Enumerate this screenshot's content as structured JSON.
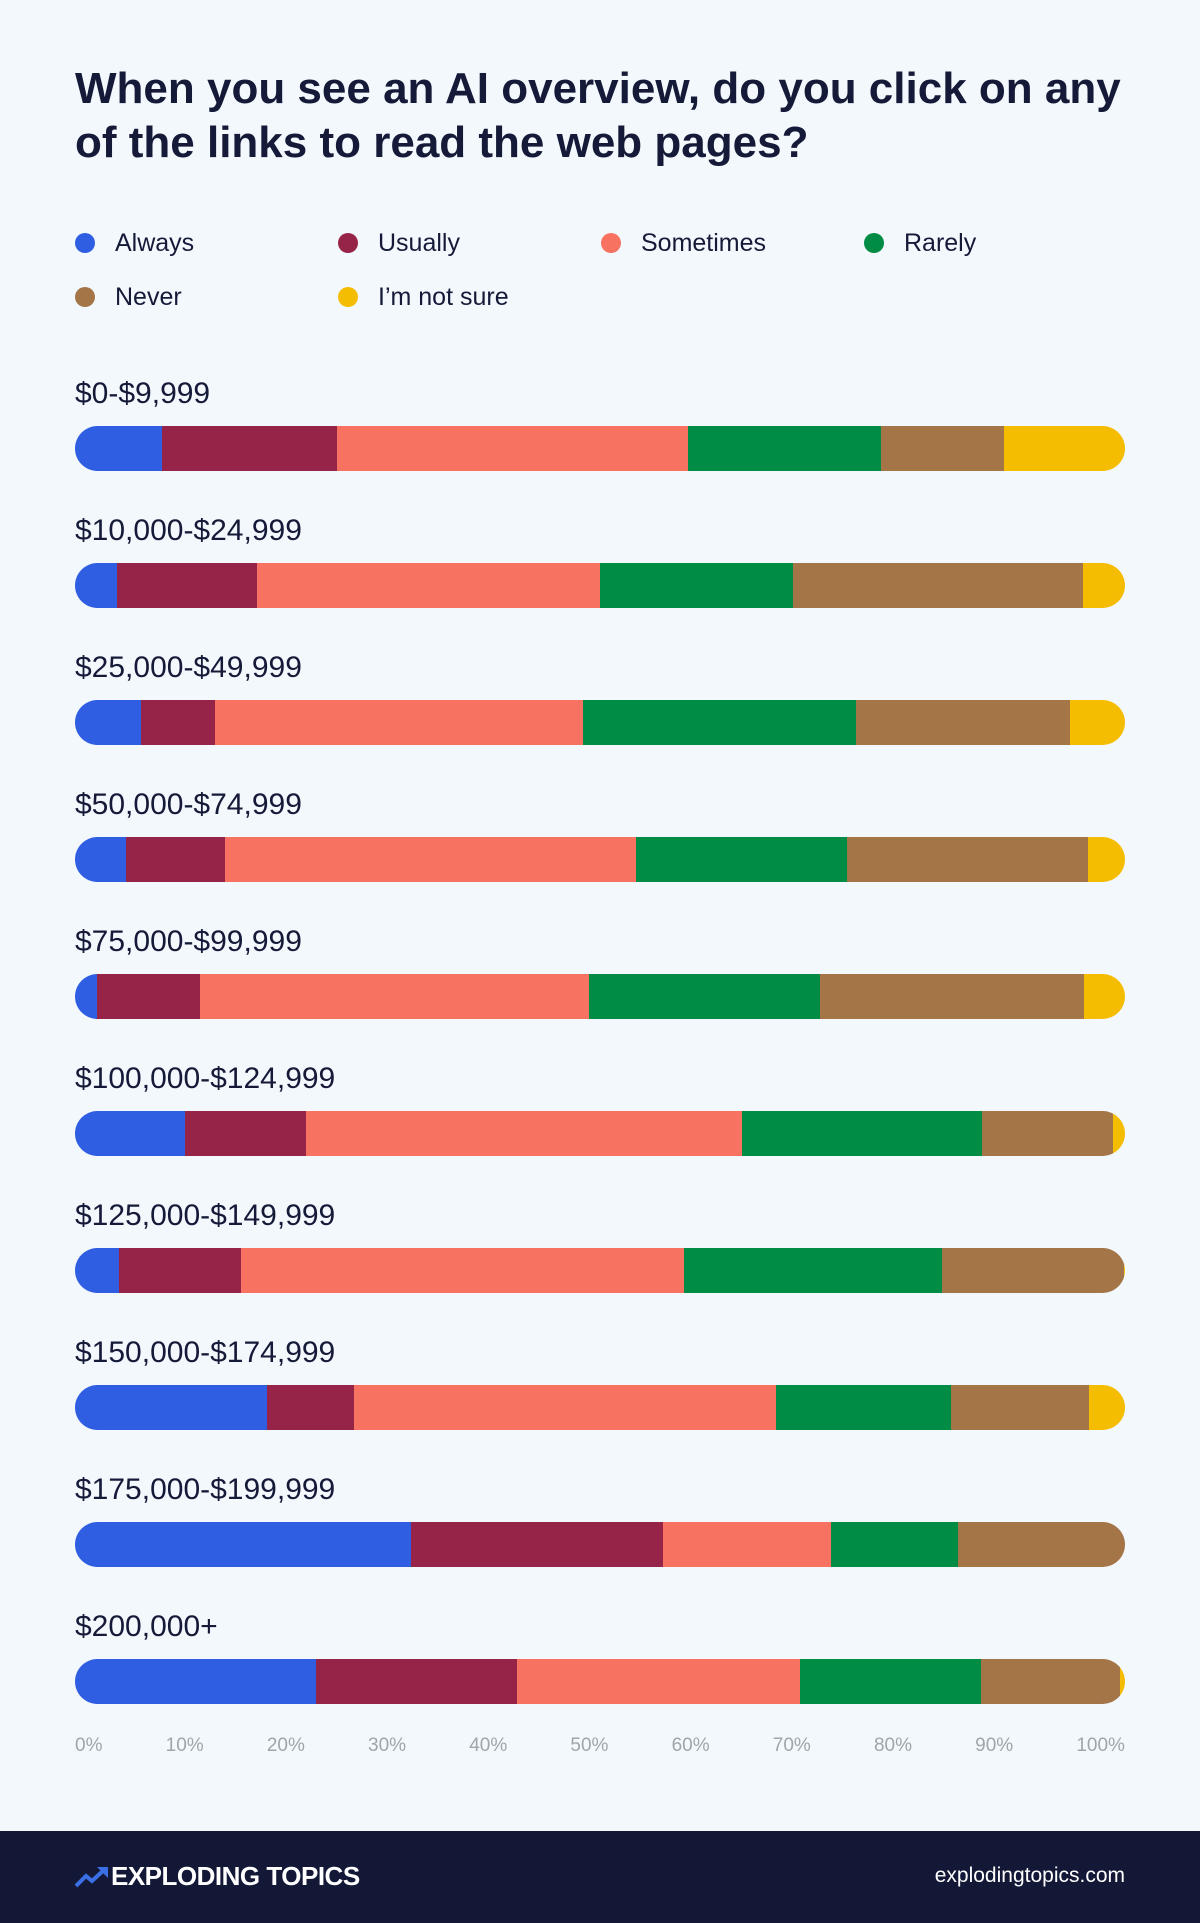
{
  "chart_data": {
    "type": "bar",
    "orientation": "horizontal",
    "stacked": true,
    "title": "When you see an AI overview, do you click on any of the links to read the web pages?",
    "legend_position": "top",
    "series_colors": [
      "#2f5ee3",
      "#962448",
      "#f87262",
      "#008c44",
      "#a37547",
      "#f5bd02"
    ],
    "legend": [
      "Always",
      "Usually",
      "Sometimes",
      "Rarely",
      "Never",
      "I’m not sure"
    ],
    "categories": [
      "$0-$9,999",
      "$10,000-$24,999",
      "$25,000-$49,999",
      "$50,000-$74,999",
      "$75,000-$99,999",
      "$100,000-$124,999",
      "$125,000-$149,999",
      "$150,000-$174,999",
      "$175,000-$199,999",
      "$200,000+"
    ],
    "series": [
      {
        "name": "Always",
        "values": [
          8.3,
          4.0,
          6.3,
          4.9,
          2.1,
          10.5,
          4.2,
          18.3,
          32.0,
          23.0
        ]
      },
      {
        "name": "Usually",
        "values": [
          16.7,
          13.3,
          7.0,
          9.4,
          9.8,
          11.5,
          11.6,
          8.3,
          24.0,
          19.1
        ]
      },
      {
        "name": "Sometimes",
        "values": [
          33.4,
          32.7,
          35.1,
          39.1,
          37.1,
          41.5,
          42.2,
          40.2,
          16.0,
          27.0
        ]
      },
      {
        "name": "Rarely",
        "values": [
          18.4,
          18.4,
          26.0,
          20.1,
          22.0,
          22.9,
          24.6,
          16.6,
          12.1,
          17.3
        ]
      },
      {
        "name": "Never",
        "values": [
          11.7,
          27.6,
          20.4,
          23.0,
          25.1,
          12.5,
          17.3,
          13.2,
          15.9,
          13.2
        ]
      },
      {
        "name": "I’m not sure",
        "values": [
          11.5,
          4.0,
          5.2,
          3.5,
          3.9,
          1.1,
          0.1,
          3.4,
          0.0,
          0.5
        ]
      }
    ],
    "xlim": [
      0,
      100
    ],
    "x_ticks": [
      "0%",
      "10%",
      "20%",
      "30%",
      "40%",
      "50%",
      "60%",
      "70%",
      "80%",
      "90%",
      "100%"
    ],
    "grid": false
  },
  "footer": {
    "brand": "EXPLODING TOPICS",
    "site": "explodingtopics.com"
  }
}
